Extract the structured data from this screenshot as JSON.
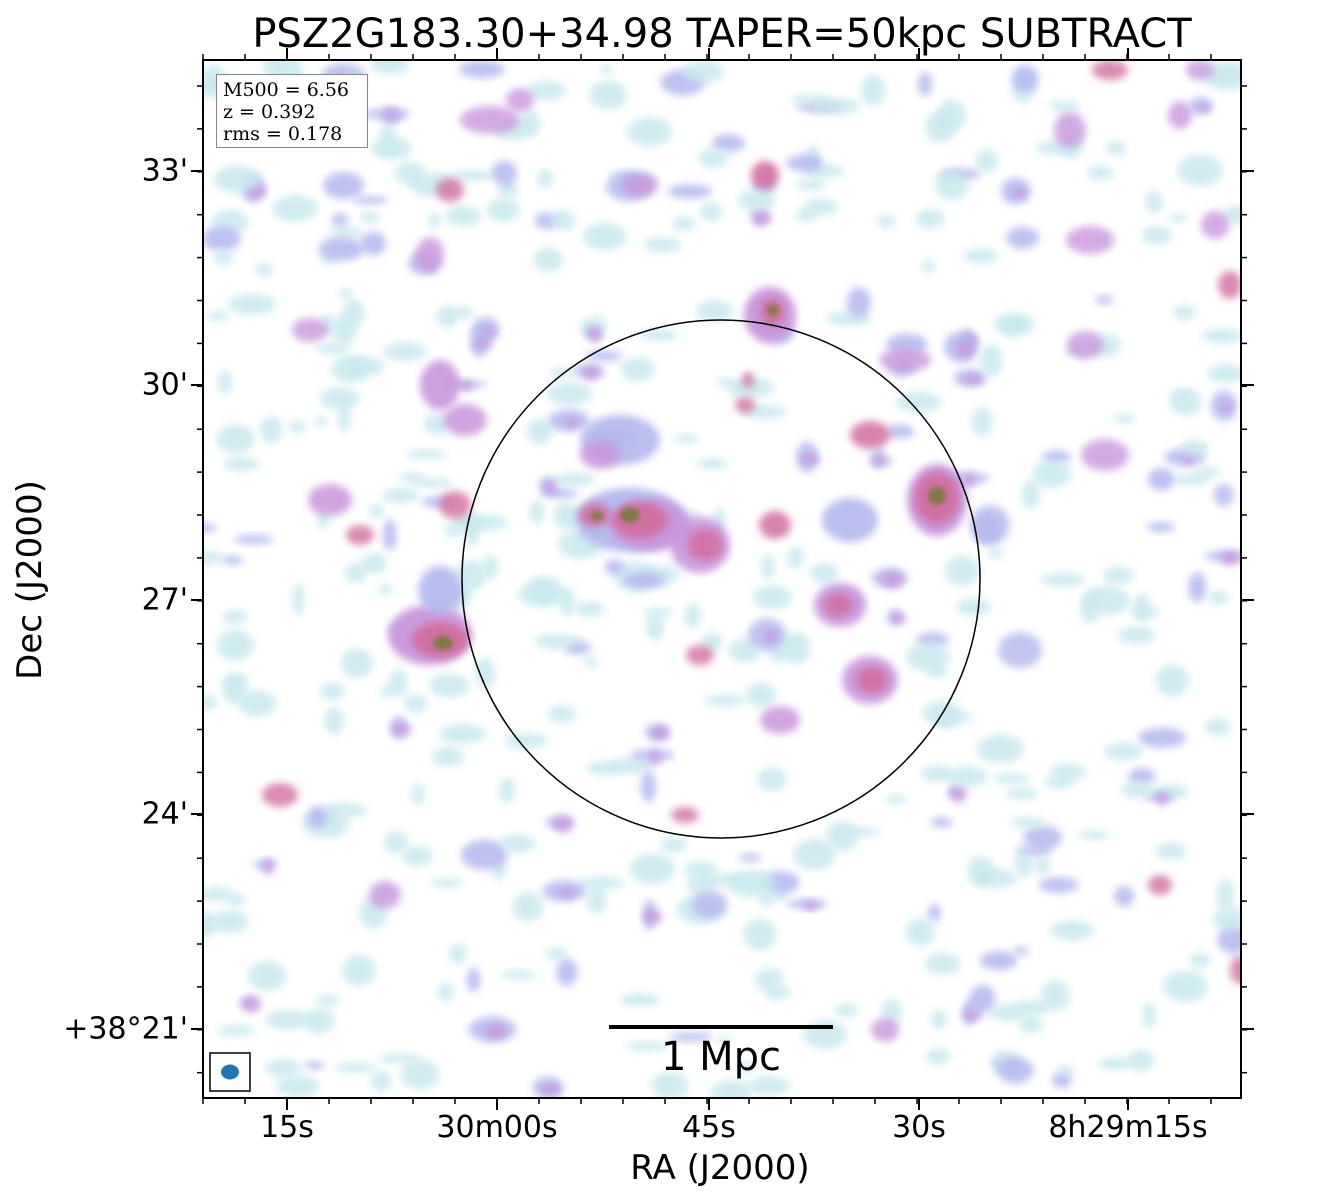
{
  "figure": {
    "title": "PSZ2G183.30+34.98 TAPER=50kpc SUBTRACT",
    "xlabel": "RA (J2000)",
    "ylabel": "Dec (J2000)",
    "x_ticks": [
      "15s",
      "30m00s",
      "45s",
      "30s",
      "8h29m15s"
    ],
    "y_ticks": [
      "33'",
      "30'",
      "27'",
      "24'",
      "+38°21'"
    ]
  },
  "info": {
    "mass": "M500 = 6.56",
    "redshift": "z = 0.392",
    "rms": "rms = 0.178"
  },
  "scale_bar": {
    "label": "1 Mpc"
  },
  "colors": {
    "faint": "#c8e8ee",
    "low": "#b4b8ee",
    "mid": "#c896dc",
    "high": "#d26ea0",
    "peak": "#7a7a3c",
    "beam": "#1f77b4"
  }
}
